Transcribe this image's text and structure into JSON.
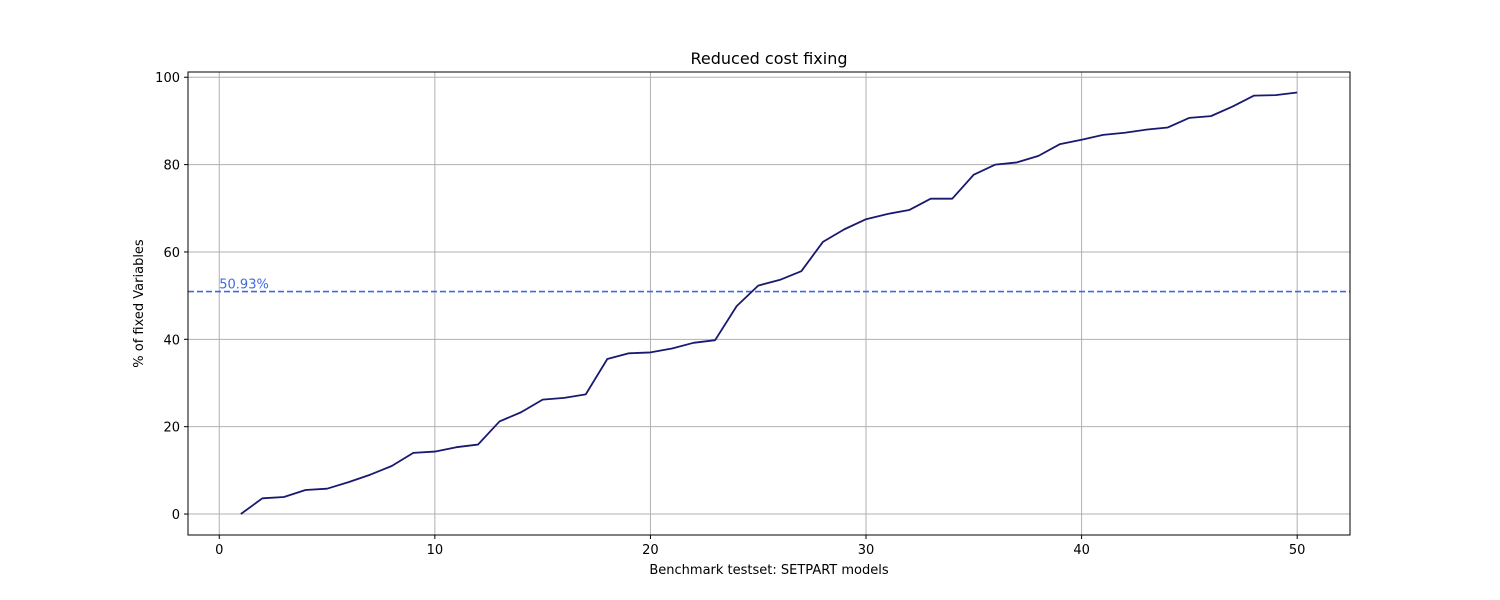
{
  "chart_data": {
    "type": "line",
    "title": "Reduced cost fixing",
    "xlabel": "Benchmark testset: SETPART models",
    "ylabel": "% of fixed Variables",
    "xlim": [
      -1.45,
      52.45
    ],
    "ylim": [
      -4.8,
      101.2
    ],
    "xticks": [
      0,
      10,
      20,
      30,
      40,
      50
    ],
    "yticks": [
      0,
      20,
      40,
      60,
      80,
      100
    ],
    "grid": true,
    "series": [
      {
        "color": "#191970",
        "x": [
          1,
          2,
          3,
          4,
          5,
          6,
          7,
          8,
          9,
          10,
          11,
          12,
          13,
          14,
          15,
          16,
          17,
          18,
          19,
          20,
          21,
          22,
          23,
          24,
          25,
          26,
          27,
          28,
          29,
          30,
          31,
          32,
          33,
          34,
          35,
          36,
          37,
          38,
          39,
          40,
          41,
          42,
          43,
          44,
          45,
          46,
          47,
          48,
          49,
          50
        ],
        "y": [
          0.0,
          3.6,
          3.9,
          5.5,
          5.8,
          7.3,
          9.0,
          11.0,
          14.0,
          14.3,
          15.3,
          15.9,
          21.2,
          23.3,
          26.2,
          26.6,
          27.4,
          35.5,
          36.8,
          37.0,
          37.9,
          39.2,
          39.8,
          47.6,
          52.3,
          53.6,
          55.6,
          62.3,
          65.2,
          67.5,
          68.7,
          69.6,
          72.2,
          72.2,
          77.7,
          80.0,
          80.5,
          82.0,
          84.7,
          85.7,
          86.8,
          87.3,
          88.0,
          88.5,
          90.7,
          91.1,
          93.3,
          95.8,
          95.9,
          96.5
        ]
      }
    ],
    "reference_line": {
      "y": 50.93,
      "label": "50.93%",
      "color": "#4169e1",
      "style": "dashed"
    }
  }
}
